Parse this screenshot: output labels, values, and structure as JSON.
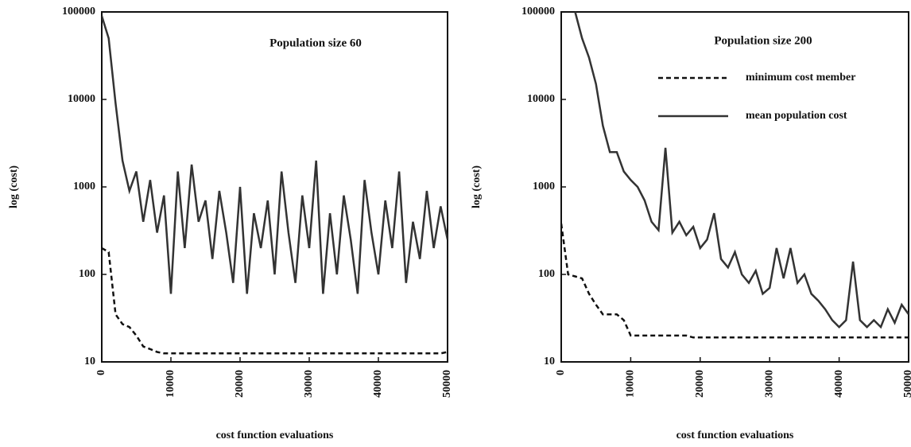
{
  "chart_data": [
    {
      "type": "line",
      "title": "Population size 60",
      "ylabel": "log (cost)",
      "xlabel": "cost function evaluations",
      "log_y": true,
      "ylim": [
        10,
        100000
      ],
      "yticks": [
        10,
        100,
        1000,
        10000,
        100000
      ],
      "xlim": [
        0,
        50000
      ],
      "xticks": [
        0,
        10000,
        20000,
        30000,
        40000,
        50000
      ],
      "x": [
        0,
        1000,
        2000,
        3000,
        4000,
        5000,
        6000,
        7000,
        8000,
        9000,
        10000,
        11000,
        12000,
        13000,
        14000,
        15000,
        16000,
        17000,
        18000,
        19000,
        20000,
        21000,
        22000,
        23000,
        24000,
        25000,
        26000,
        27000,
        28000,
        29000,
        30000,
        31000,
        32000,
        33000,
        34000,
        35000,
        36000,
        37000,
        38000,
        39000,
        40000,
        41000,
        42000,
        43000,
        44000,
        45000,
        46000,
        47000,
        48000,
        49000,
        50000
      ],
      "series": [
        {
          "color": "#111111",
          "style": "dashed",
          "values": [
            200,
            180,
            35,
            27,
            25,
            20,
            15,
            14,
            13,
            12.5,
            12.5,
            12.5,
            12.5,
            12.5,
            12.5,
            12.5,
            12.5,
            12.5,
            12.5,
            12.5,
            12.5,
            12.5,
            12.5,
            12.5,
            12.5,
            12.5,
            12.5,
            12.5,
            12.5,
            12.5,
            12.5,
            12.5,
            12.5,
            12.5,
            12.5,
            12.5,
            12.5,
            12.5,
            12.5,
            12.5,
            12.5,
            12.5,
            12.5,
            12.5,
            12.5,
            12.5,
            12.5,
            12.5,
            12.5,
            12.5,
            13
          ]
        },
        {
          "color": "#333333",
          "style": "solid",
          "values": [
            90000,
            50000,
            9000,
            2000,
            900,
            1500,
            400,
            1200,
            300,
            800,
            60,
            1500,
            200,
            1800,
            400,
            700,
            150,
            900,
            300,
            80,
            1000,
            60,
            500,
            200,
            700,
            100,
            1500,
            300,
            80,
            800,
            200,
            2000,
            60,
            500,
            100,
            800,
            250,
            60,
            1200,
            300,
            100,
            700,
            200,
            1500,
            80,
            400,
            150,
            900,
            200,
            600,
            250
          ]
        }
      ]
    },
    {
      "type": "line",
      "title": "Population size 200",
      "ylabel": "log (cost)",
      "xlabel": "cost function evaluations",
      "log_y": true,
      "ylim": [
        10,
        100000
      ],
      "yticks": [
        10,
        100,
        1000,
        10000,
        100000
      ],
      "xlim": [
        0,
        50000
      ],
      "xticks": [
        0,
        10000,
        20000,
        30000,
        40000,
        50000
      ],
      "legend": "upper right",
      "x": [
        0,
        1000,
        2000,
        3000,
        4000,
        5000,
        6000,
        7000,
        8000,
        9000,
        10000,
        11000,
        12000,
        13000,
        14000,
        15000,
        16000,
        17000,
        18000,
        19000,
        20000,
        21000,
        22000,
        23000,
        24000,
        25000,
        26000,
        27000,
        28000,
        29000,
        30000,
        31000,
        32000,
        33000,
        34000,
        35000,
        36000,
        37000,
        38000,
        39000,
        40000,
        41000,
        42000,
        43000,
        44000,
        45000,
        46000,
        47000,
        48000,
        49000,
        50000
      ],
      "series": [
        {
          "name": "minimum cost member",
          "color": "#111111",
          "style": "dashed",
          "values": [
            380,
            100,
            95,
            90,
            60,
            45,
            35,
            35,
            35,
            30,
            20,
            20,
            20,
            20,
            20,
            20,
            20,
            20,
            20,
            19,
            19,
            19,
            19,
            19,
            19,
            19,
            19,
            19,
            19,
            19,
            19,
            19,
            19,
            19,
            19,
            19,
            19,
            19,
            19,
            19,
            19,
            19,
            19,
            19,
            19,
            19,
            19,
            19,
            19,
            19,
            19
          ]
        },
        {
          "name": "mean population cost",
          "color": "#333333",
          "style": "solid",
          "values": [
            null,
            null,
            100000,
            50000,
            30000,
            15000,
            5000,
            2500,
            2500,
            1500,
            1200,
            1000,
            700,
            400,
            320,
            2800,
            300,
            400,
            280,
            350,
            200,
            250,
            500,
            150,
            120,
            180,
            100,
            80,
            110,
            60,
            70,
            200,
            90,
            200,
            80,
            100,
            60,
            50,
            40,
            30,
            25,
            30,
            140,
            30,
            25,
            30,
            25,
            40,
            28,
            45,
            35
          ]
        }
      ]
    }
  ]
}
